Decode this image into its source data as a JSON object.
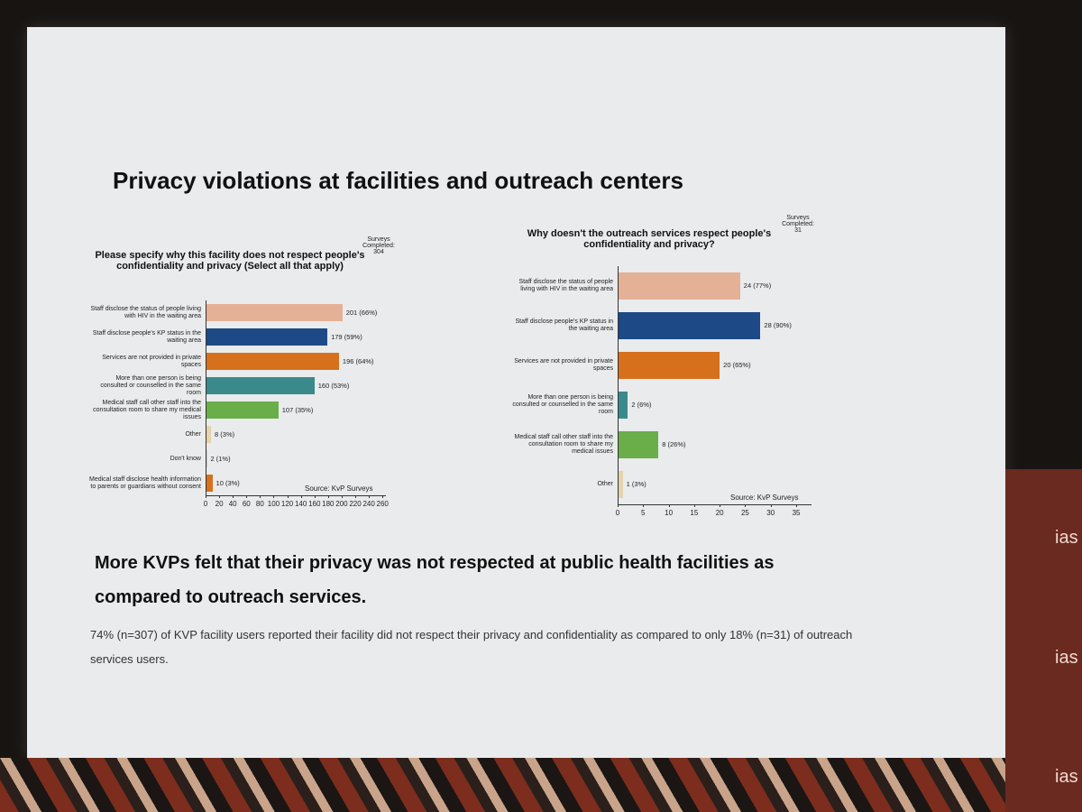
{
  "slide": {
    "title": "Privacy violations at facilities and outreach centers",
    "heading": "More KVPs felt that their privacy was not respected at public health facilities as compared to outreach services.",
    "body": "74% (n=307) of KVP facility users reported their facility did not respect their privacy and confidentiality as compared to only 18% (n=31) of outreach services users."
  },
  "side": {
    "logo": "ias"
  },
  "chart_data": [
    {
      "type": "bar",
      "orientation": "horizontal",
      "title": "Please specify why this facility does not respect people's confidentiality and privacy (Select all that apply)",
      "note": "Surveys Completed: 304",
      "source": "Source: KvP Surveys",
      "categories": [
        "Staff disclose the status of people living with HIV in the waiting area",
        "Staff disclose people's KP status in the waiting area",
        "Services are not provided in private spaces",
        "More than one person is being consulted or counselled in the same room",
        "Medical staff call other staff into the consultation room to share my medical issues",
        "Other",
        "Don't know",
        "Medical staff disclose health information to parents or guardians without consent"
      ],
      "values": [
        201,
        179,
        196,
        160,
        107,
        8,
        2,
        10
      ],
      "value_labels": [
        "201 (66%)",
        "179 (59%)",
        "196 (64%)",
        "160 (53%)",
        "107 (35%)",
        "8 (3%)",
        "2 (1%)",
        "10 (3%)"
      ],
      "colors": [
        "#e4b096",
        "#1d4a86",
        "#d7701c",
        "#3b8a8b",
        "#6aae4a",
        "#e6d2ad",
        "#cfcfcf",
        "#d7701c"
      ],
      "xlim": [
        0,
        265
      ],
      "xticks": [
        0,
        20,
        40,
        60,
        80,
        100,
        120,
        140,
        160,
        180,
        200,
        220,
        240,
        260
      ]
    },
    {
      "type": "bar",
      "orientation": "horizontal",
      "title": "Why doesn't the outreach services respect people's confidentiality and privacy?",
      "note": "Surveys Completed: 31",
      "source": "Source: KvP Surveys",
      "categories": [
        "Staff disclose the status of people living with HIV in the waiting area",
        "Staff disclose people's KP status in the waiting area",
        "Services are not provided in private spaces",
        "More than one person is being consulted or counselled in the same room",
        "Medical staff call other staff into the consultation room to share my medical issues",
        "Other"
      ],
      "values": [
        24,
        28,
        20,
        2,
        8,
        1
      ],
      "value_labels": [
        "24 (77%)",
        "28 (90%)",
        "20 (65%)",
        "2 (6%)",
        "8 (26%)",
        "1 (3%)"
      ],
      "colors": [
        "#e4b096",
        "#1d4a86",
        "#d7701c",
        "#3b8a8b",
        "#6aae4a",
        "#e6d2ad"
      ],
      "xlim": [
        0,
        38
      ],
      "xticks": [
        0,
        5,
        10,
        15,
        20,
        25,
        30,
        35
      ]
    }
  ]
}
